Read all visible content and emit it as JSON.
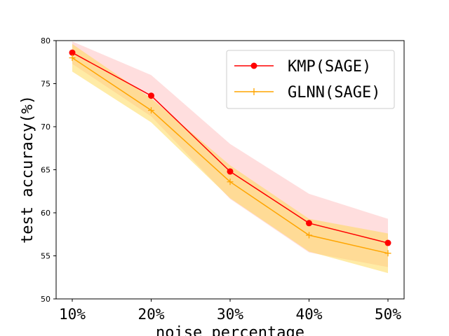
{
  "chart_data": {
    "type": "line",
    "title": "",
    "xlabel": "noise percentage",
    "ylabel": "test accuracy(%)",
    "categories": [
      "10%",
      "20%",
      "30%",
      "40%",
      "50%"
    ],
    "ylim": [
      50,
      80
    ],
    "yticks": [
      50,
      55,
      60,
      65,
      70,
      75,
      80
    ],
    "legend_position": "top-right",
    "series": [
      {
        "name": "KMP(SAGE)",
        "color": "#ff0000",
        "band_color": "#ffb6b6",
        "marker": "circle",
        "values": [
          78.6,
          73.6,
          64.8,
          58.8,
          56.5
        ],
        "upper": [
          79.9,
          76.0,
          68.0,
          62.2,
          59.3
        ],
        "lower": [
          77.3,
          71.2,
          61.6,
          55.4,
          53.7
        ]
      },
      {
        "name": "GLNN(SAGE)",
        "color": "#ffa500",
        "band_color": "#ffd84d",
        "marker": "plus",
        "values": [
          78.0,
          71.9,
          63.6,
          57.4,
          55.3
        ],
        "upper": [
          79.6,
          73.3,
          65.5,
          59.3,
          57.6
        ],
        "lower": [
          76.4,
          70.5,
          61.7,
          55.5,
          53.0
        ]
      }
    ]
  }
}
